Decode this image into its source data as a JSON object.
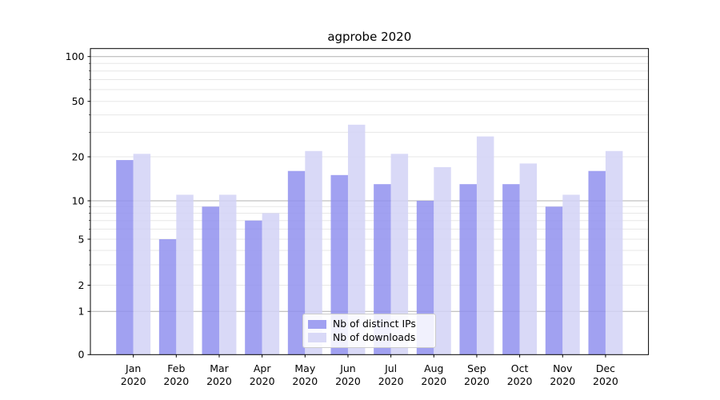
{
  "title": "agprobe 2020",
  "legend": {
    "items": [
      {
        "label": "Nb of distinct IPs",
        "color": "#9090ee"
      },
      {
        "label": "Nb of downloads",
        "color": "#d2d2f6"
      }
    ],
    "swatch_opacity": 0.85
  },
  "axes": {
    "y_tick_labels": [
      "0",
      "1",
      "2",
      "5",
      "10",
      "20",
      "50",
      "100"
    ],
    "x_months": [
      "Jan",
      "Feb",
      "Mar",
      "Apr",
      "May",
      "Jun",
      "Jul",
      "Aug",
      "Sep",
      "Oct",
      "Nov",
      "Dec"
    ],
    "x_year": "2020"
  },
  "chart_data": {
    "type": "bar",
    "title": "agprobe 2020",
    "categories": [
      "Jan 2020",
      "Feb 2020",
      "Mar 2020",
      "Apr 2020",
      "May 2020",
      "Jun 2020",
      "Jul 2020",
      "Aug 2020",
      "Sep 2020",
      "Oct 2020",
      "Nov 2020",
      "Dec 2020"
    ],
    "series": [
      {
        "name": "Nb of distinct IPs",
        "color": "#9090ee",
        "values": [
          19,
          5,
          9,
          7,
          16,
          15,
          13,
          10,
          13,
          13,
          9,
          16
        ]
      },
      {
        "name": "Nb of downloads",
        "color": "#d2d2f6",
        "values": [
          21,
          11,
          11,
          8,
          22,
          34,
          21,
          17,
          28,
          18,
          11,
          22
        ]
      }
    ],
    "yscale": "symlog",
    "yticks": [
      0,
      1,
      2,
      5,
      10,
      20,
      50,
      100
    ],
    "minor_yticks": [
      2,
      3,
      4,
      5,
      6,
      7,
      8,
      9,
      20,
      30,
      40,
      50,
      60,
      70,
      80,
      90
    ],
    "ylim": [
      0,
      113
    ],
    "grid": true,
    "legend_position": "lower center",
    "bar_group_width_fraction": 0.8
  }
}
